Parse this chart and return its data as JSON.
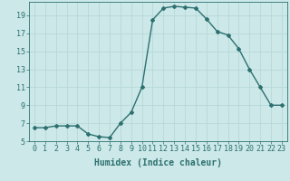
{
  "x": [
    0,
    1,
    2,
    3,
    4,
    5,
    6,
    7,
    8,
    9,
    10,
    11,
    12,
    13,
    14,
    15,
    16,
    17,
    18,
    19,
    20,
    21,
    22,
    23
  ],
  "y": [
    6.5,
    6.5,
    6.7,
    6.7,
    6.7,
    5.8,
    5.5,
    5.4,
    7.0,
    8.2,
    11.0,
    18.5,
    19.8,
    20.0,
    19.9,
    19.8,
    18.6,
    17.2,
    16.8,
    15.3,
    13.0,
    11.0,
    9.0,
    9.0
  ],
  "xlabel": "Humidex (Indice chaleur)",
  "line_color": "#2d7070",
  "marker": "D",
  "marker_size": 2,
  "bg_color": "#cce8e8",
  "grid_color": "#b8d8d8",
  "tick_color": "#2d7070",
  "xlim": [
    -0.5,
    23.5
  ],
  "ylim": [
    5,
    20.5
  ],
  "yticks": [
    5,
    7,
    9,
    11,
    13,
    15,
    17,
    19
  ],
  "xticks": [
    0,
    1,
    2,
    3,
    4,
    5,
    6,
    7,
    8,
    9,
    10,
    11,
    12,
    13,
    14,
    15,
    16,
    17,
    18,
    19,
    20,
    21,
    22,
    23
  ],
  "xlabel_fontsize": 7,
  "tick_fontsize": 6,
  "line_width": 1.0
}
